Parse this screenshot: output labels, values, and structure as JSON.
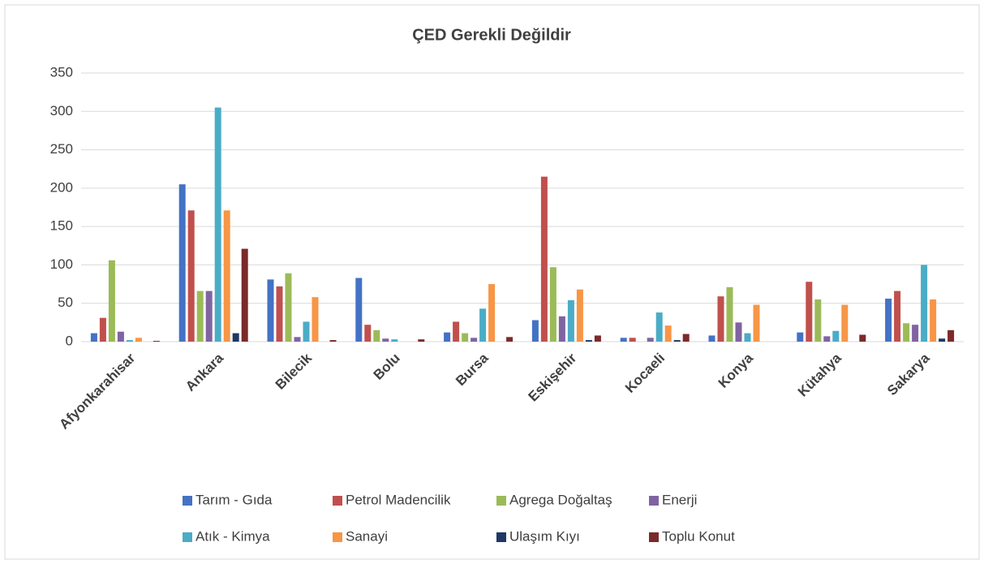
{
  "chart_data": {
    "type": "bar",
    "title": "ÇED Gerekli Değildir",
    "categories": [
      "Afyonkarahisar",
      "Ankara",
      "Bilecik",
      "Bolu",
      "Bursa",
      "Eskişehir",
      "Kocaeli",
      "Konya",
      "Kütahya",
      "Sakarya"
    ],
    "series": [
      {
        "name": "Tarım - Gıda",
        "color": "#4472c4",
        "values": [
          11,
          205,
          81,
          83,
          12,
          28,
          5,
          8,
          12,
          56
        ]
      },
      {
        "name": "Petrol Madencilik",
        "color": "#c0504d",
        "values": [
          31,
          171,
          72,
          22,
          26,
          215,
          5,
          59,
          78,
          66
        ]
      },
      {
        "name": "Agrega Doğaltaş",
        "color": "#9bbb59",
        "values": [
          106,
          66,
          89,
          15,
          11,
          97,
          0,
          71,
          55,
          24
        ]
      },
      {
        "name": "Enerji",
        "color": "#8064a2",
        "values": [
          13,
          66,
          6,
          4,
          5,
          33,
          5,
          25,
          7,
          22
        ]
      },
      {
        "name": "Atık - Kimya",
        "color": "#4bacc6",
        "values": [
          2,
          305,
          26,
          3,
          43,
          54,
          38,
          11,
          14,
          100
        ]
      },
      {
        "name": "Sanayi",
        "color": "#f79646",
        "values": [
          5,
          171,
          58,
          0,
          75,
          68,
          21,
          48,
          48,
          55
        ]
      },
      {
        "name": "Ulaşım Kıyı",
        "color": "#1f3864",
        "values": [
          0,
          11,
          0,
          0,
          0,
          2,
          2,
          0,
          0,
          4
        ]
      },
      {
        "name": "Toplu Konut",
        "color": "#7b2a2a",
        "values": [
          1,
          121,
          2,
          3,
          6,
          8,
          10,
          0,
          9,
          15
        ]
      }
    ],
    "ylim": [
      0,
      350
    ],
    "yticks": [
      0,
      50,
      100,
      150,
      200,
      250,
      300,
      350
    ],
    "grid": true,
    "legend": "bottom"
  }
}
